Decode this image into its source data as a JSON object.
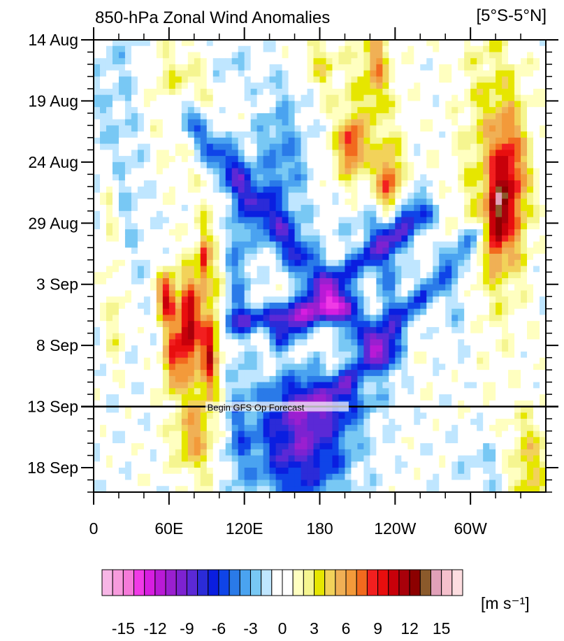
{
  "chart_data": {
    "type": "heatmap",
    "title": "850-hPa Zonal Wind Anomalies",
    "region_label": "[5°S-5°N]",
    "x_ticks": [
      "0",
      "60E",
      "120E",
      "180",
      "120W",
      "60W"
    ],
    "y_ticks": [
      "14 Aug",
      "19 Aug",
      "24 Aug",
      "29 Aug",
      "3 Sep",
      "8 Sep",
      "13 Sep",
      "18 Sep"
    ],
    "xlim_deg_east": [
      0,
      360
    ],
    "ylim_days_from_14aug": [
      0,
      37
    ],
    "forecast_line_day": 30,
    "forecast_label": "Begin GFS Op Forecast",
    "colorbar": {
      "unit_label": "[m s⁻¹]",
      "tick_labels": [
        "-15",
        "-12",
        "-9",
        "-6",
        "-3",
        "0",
        "3",
        "6",
        "9",
        "12",
        "15"
      ],
      "tick_values": [
        -15,
        -12,
        -9,
        -6,
        -3,
        0,
        3,
        6,
        9,
        12,
        15
      ],
      "levels_per_box": 1,
      "colors": [
        "#f7b6e6",
        "#f79bdd",
        "#f57ad9",
        "#f03ae6",
        "#d71ee0",
        "#b91ad6",
        "#9a1fd0",
        "#7d22d1",
        "#5b29d6",
        "#2b2bd8",
        "#0a1ee0",
        "#0f44e8",
        "#2a7ae8",
        "#4aa3f0",
        "#78c8f4",
        "#bfe6ff",
        "#ffffff",
        "#ffffff",
        "#ffffc0",
        "#f5f590",
        "#e6e600",
        "#f2d25a",
        "#f0b055",
        "#f39a3a",
        "#f26a1e",
        "#f21f1f",
        "#e80e0e",
        "#c8000a",
        "#a8000a",
        "#8c0000",
        "#8b5a2b",
        "#e1a0b8",
        "#f5c0cc",
        "#fddde0"
      ]
    },
    "anomaly_blobs": [
      {
        "lon": 75,
        "day": 23.5,
        "rlon": 8,
        "rday": 4,
        "value": 11
      },
      {
        "lon": 58,
        "day": 21,
        "rlon": 7,
        "rday": 2,
        "value": 10
      },
      {
        "lon": 62,
        "day": 26,
        "rlon": 7,
        "rday": 3,
        "value": 8
      },
      {
        "lon": 88,
        "day": 18,
        "rlon": 4,
        "rday": 2,
        "value": 7
      },
      {
        "lon": 92,
        "day": 25.5,
        "rlon": 5,
        "rday": 3,
        "value": 7
      },
      {
        "lon": 90,
        "day": 24,
        "rlon": 14,
        "rday": 9,
        "value": 4
      },
      {
        "lon": 18,
        "day": 23,
        "rlon": 9,
        "rday": 4,
        "value": 3
      },
      {
        "lon": 12,
        "day": 15,
        "rlon": 8,
        "rday": 5,
        "value": 3
      },
      {
        "lon": 78,
        "day": 32.5,
        "rlon": 14,
        "rday": 3,
        "value": 5
      },
      {
        "lon": 205,
        "day": 8.5,
        "rlon": 9,
        "rday": 2,
        "value": 7
      },
      {
        "lon": 235,
        "day": 12,
        "rlon": 9,
        "rday": 3,
        "value": 8
      },
      {
        "lon": 215,
        "day": 10,
        "rlon": 28,
        "rday": 10,
        "value": 3
      },
      {
        "lon": 330,
        "day": 12,
        "rlon": 15,
        "rday": 6,
        "value": 9
      },
      {
        "lon": 320,
        "day": 15,
        "rlon": 6,
        "rday": 3,
        "value": 7
      },
      {
        "lon": 315,
        "day": 10,
        "rlon": 25,
        "rday": 14,
        "value": 3
      },
      {
        "lon": 180,
        "day": 2,
        "rlon": 12,
        "rday": 2,
        "value": 3
      },
      {
        "lon": 225,
        "day": 2,
        "rlon": 9,
        "rday": 3,
        "value": 5
      },
      {
        "lon": 345,
        "day": 35,
        "rlon": 18,
        "rday": 4,
        "value": 5
      },
      {
        "lon": 70,
        "day": 5,
        "rlon": 28,
        "rday": 5,
        "value": 3
      },
      {
        "lon": 150,
        "day": 10,
        "rlon": 22,
        "rday": 6,
        "value": -4
      },
      {
        "lon": 220,
        "day": 15,
        "rlon": 32,
        "rday": 3,
        "value": -4
      },
      {
        "lon": 235,
        "day": 20.5,
        "rlon": 12,
        "rday": 6,
        "value": -4
      },
      {
        "lon": 115,
        "day": 18,
        "rlon": 10,
        "rday": 7,
        "value": -4
      },
      {
        "lon": 320,
        "day": 35,
        "rlon": 30,
        "rday": 3,
        "value": -2
      },
      {
        "lon": 20,
        "day": 8,
        "rlon": 25,
        "rday": 16,
        "value": -2
      },
      {
        "lon": 105,
        "day": 2,
        "rlon": 20,
        "rday": 2,
        "value": -2
      },
      {
        "lon": 185,
        "day": 29.5,
        "rlon": 36,
        "rday": 2,
        "value": -5
      },
      {
        "lon": 115,
        "day": 32,
        "rlon": 10,
        "rday": 5,
        "value": -3
      },
      {
        "lon": 290,
        "day": 22,
        "rlon": 14,
        "rday": 4,
        "value": -2
      },
      {
        "lon": 165,
        "day": 33,
        "rlon": 38,
        "rday": 5,
        "value": -9
      }
    ],
    "anomaly_bands": [
      {
        "lon0": 72,
        "day0": 6,
        "lon1": 230,
        "day1": 26,
        "width": 13,
        "value": -6
      },
      {
        "lon0": 150,
        "day0": 24,
        "lon1": 260,
        "day1": 14,
        "width": 11,
        "value": -6
      },
      {
        "lon0": 200,
        "day0": 28,
        "lon1": 305,
        "day1": 16,
        "width": 9,
        "value": -5
      },
      {
        "lon0": 110,
        "day0": 23,
        "lon1": 200,
        "day1": 22,
        "width": 9,
        "value": -6
      }
    ]
  }
}
